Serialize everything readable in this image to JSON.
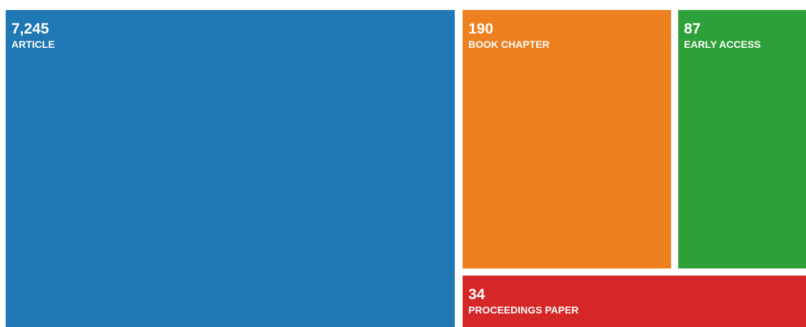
{
  "chart_data": {
    "type": "treemap",
    "categories": [
      "ARTICLE",
      "BOOK CHAPTER",
      "EARLY ACCESS",
      "PROCEEDINGS PAPER"
    ],
    "values": [
      7245,
      190,
      87,
      34
    ],
    "value_labels": [
      "7,245",
      "190",
      "87",
      "34"
    ],
    "colors": [
      "#1f78b4",
      "#ef8020",
      "#2ea039",
      "#d62728"
    ]
  }
}
